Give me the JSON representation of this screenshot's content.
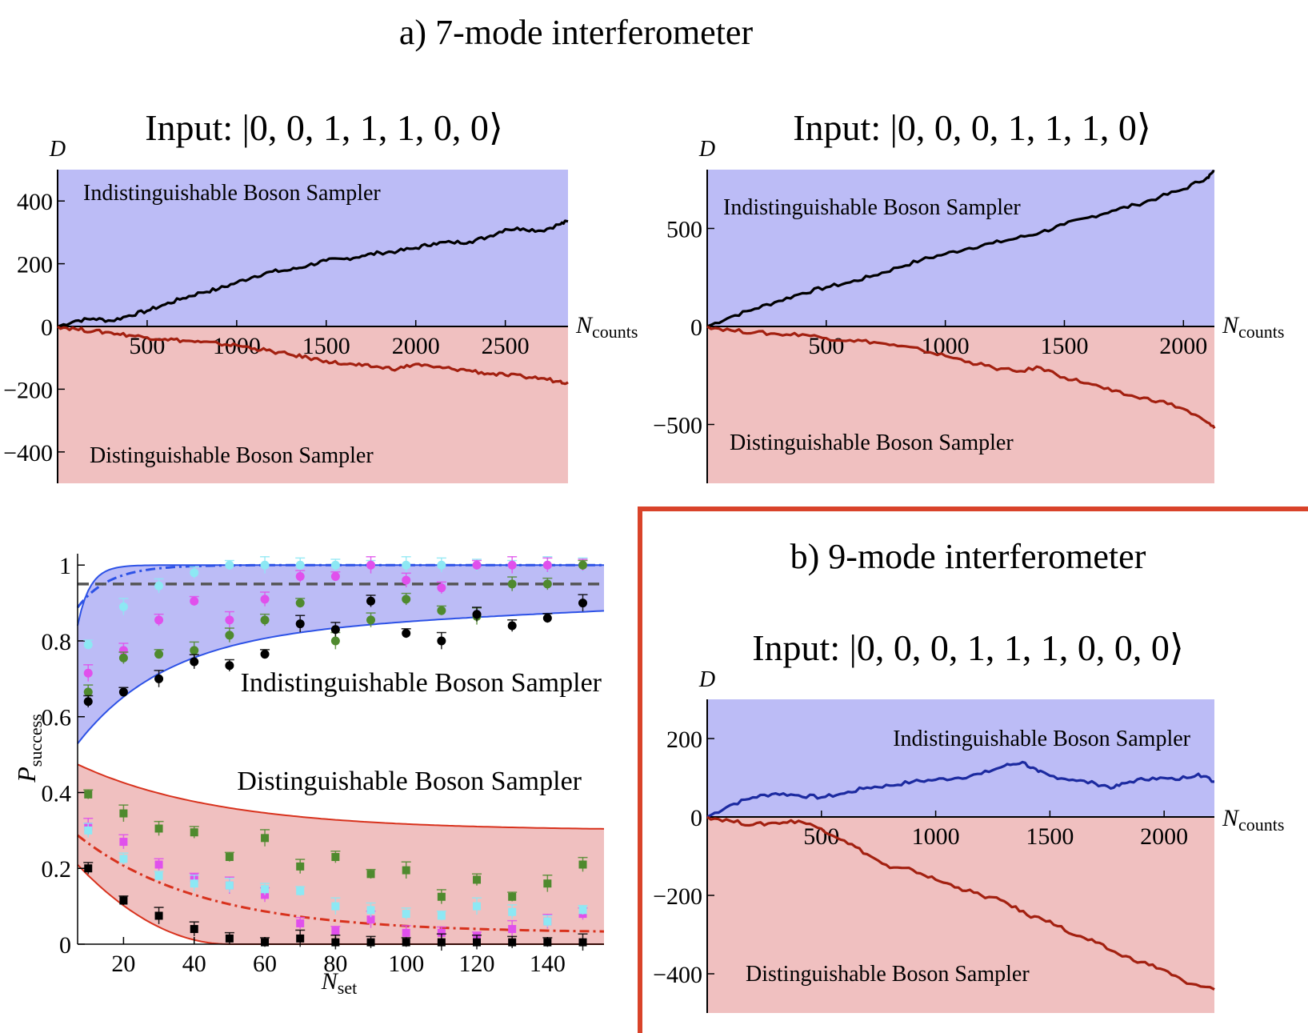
{
  "colors": {
    "indist_fill": "#bcbcf6",
    "dist_fill": "#f0c0c0",
    "dark_blue": "#1c2aa0",
    "dark_red": "#a32010",
    "bright_blue": "#2d52e6",
    "bright_red": "#d8321d",
    "frame_red": "#d9432a",
    "magenta": "#e050ec",
    "cyan": "#8de8f4",
    "green": "#4f8a2e",
    "black": "#000000",
    "gray": "#555555"
  },
  "figure": {
    "title_a": "a) 7-mode interferometer",
    "title_b": "b)  9-mode interferometer"
  },
  "chart_data": [
    {
      "id": "a-left",
      "type": "line",
      "input_prefix": "Input: ",
      "input_state": "|0, 0, 1, 1, 1, 0, 0⟩",
      "ylabel": "D",
      "xlabel_main": "N",
      "xlabel_sub": "counts",
      "xlim": [
        0,
        2850
      ],
      "ylim": [
        -500,
        500
      ],
      "xticks": [
        500,
        1000,
        1500,
        2000,
        2500
      ],
      "yticks": [
        -400,
        -200,
        0,
        200,
        400
      ],
      "ytick_labels": [
        "−400",
        "−200",
        "0",
        "200",
        "400"
      ],
      "region_top_label": "Indistinguishable Boson Sampler",
      "region_bottom_label": "Distinguishable Boson Sampler",
      "series": [
        {
          "name": "Indistinguishable",
          "color": "#000000",
          "x": [
            0,
            100,
            200,
            300,
            400,
            500,
            600,
            700,
            800,
            900,
            1000,
            1100,
            1200,
            1300,
            1400,
            1500,
            1600,
            1700,
            1800,
            1900,
            2000,
            2100,
            2200,
            2300,
            2400,
            2500,
            2600,
            2700,
            2800,
            2850
          ],
          "y": [
            0,
            18,
            25,
            18,
            35,
            50,
            70,
            90,
            108,
            120,
            140,
            160,
            175,
            180,
            195,
            210,
            215,
            225,
            235,
            240,
            250,
            265,
            268,
            270,
            285,
            310,
            312,
            305,
            325,
            335
          ]
        },
        {
          "name": "Distinguishable",
          "color": "#a32010",
          "x": [
            0,
            100,
            200,
            300,
            400,
            500,
            600,
            700,
            800,
            900,
            1000,
            1100,
            1200,
            1300,
            1400,
            1500,
            1600,
            1700,
            1800,
            1900,
            2000,
            2100,
            2200,
            2300,
            2400,
            2500,
            2600,
            2700,
            2800,
            2850
          ],
          "y": [
            0,
            -8,
            -15,
            -20,
            -28,
            -35,
            -40,
            -45,
            -50,
            -55,
            -60,
            -70,
            -80,
            -90,
            -100,
            -110,
            -120,
            -125,
            -130,
            -135,
            -120,
            -130,
            -135,
            -140,
            -150,
            -155,
            -160,
            -165,
            -175,
            -178
          ]
        }
      ]
    },
    {
      "id": "a-right",
      "type": "line",
      "input_prefix": "Input: ",
      "input_state": "|0, 0, 0, 1, 1, 1, 0⟩",
      "ylabel": "D",
      "xlabel_main": "N",
      "xlabel_sub": "counts",
      "xlim": [
        0,
        2130
      ],
      "ylim": [
        -800,
        800
      ],
      "xticks": [
        500,
        1000,
        1500,
        2000
      ],
      "yticks": [
        -500,
        0,
        500
      ],
      "ytick_labels": [
        "−500",
        "0",
        "500"
      ],
      "region_top_label": "Indistinguishable Boson Sampler",
      "region_bottom_label": "Distinguishable Boson Sampler",
      "series": [
        {
          "name": "Indistinguishable",
          "color": "#000000",
          "x": [
            0,
            100,
            200,
            300,
            400,
            500,
            600,
            700,
            800,
            900,
            1000,
            1100,
            1200,
            1300,
            1400,
            1500,
            1600,
            1700,
            1800,
            1900,
            2000,
            2100,
            2130
          ],
          "y": [
            0,
            50,
            90,
            130,
            170,
            200,
            225,
            260,
            300,
            340,
            370,
            400,
            425,
            450,
            480,
            520,
            555,
            590,
            620,
            660,
            700,
            760,
            790
          ]
        },
        {
          "name": "Distinguishable",
          "color": "#a32010",
          "x": [
            0,
            100,
            200,
            300,
            400,
            500,
            600,
            700,
            800,
            900,
            1000,
            1100,
            1200,
            1300,
            1400,
            1500,
            1600,
            1700,
            1800,
            1900,
            2000,
            2100,
            2130
          ],
          "y": [
            0,
            -20,
            -30,
            -40,
            -40,
            -60,
            -70,
            -80,
            -100,
            -120,
            -150,
            -180,
            -210,
            -230,
            -210,
            -260,
            -290,
            -330,
            -360,
            -380,
            -420,
            -490,
            -520
          ]
        }
      ]
    },
    {
      "id": "b",
      "type": "line",
      "input_prefix": "Input: ",
      "input_state": "|0, 0, 0, 1, 1, 1, 0, 0, 0⟩",
      "ylabel": "D",
      "xlabel_main": "N",
      "xlabel_sub": "counts",
      "xlim": [
        0,
        2220
      ],
      "ylim": [
        -500,
        300
      ],
      "xticks": [
        500,
        1000,
        1500,
        2000
      ],
      "yticks": [
        -400,
        -200,
        0,
        200
      ],
      "ytick_labels": [
        "−400",
        "−200",
        "0",
        "200"
      ],
      "region_top_label": "Indistinguishable Boson Sampler",
      "region_bottom_label": "Distinguishable Boson Sampler",
      "series": [
        {
          "name": "Indistinguishable",
          "color": "#1c2aa0",
          "x": [
            0,
            100,
            200,
            300,
            400,
            500,
            600,
            700,
            800,
            900,
            1000,
            1100,
            1200,
            1300,
            1380,
            1450,
            1500,
            1600,
            1700,
            1780,
            1850,
            1950,
            2050,
            2150,
            2220
          ],
          "y": [
            0,
            30,
            50,
            60,
            55,
            50,
            60,
            75,
            80,
            90,
            95,
            100,
            110,
            130,
            140,
            115,
            105,
            95,
            85,
            75,
            90,
            100,
            95,
            110,
            90
          ]
        },
        {
          "name": "Distinguishable",
          "color": "#a32010",
          "x": [
            0,
            100,
            200,
            300,
            400,
            500,
            600,
            700,
            800,
            900,
            1000,
            1100,
            1200,
            1300,
            1400,
            1500,
            1600,
            1700,
            1800,
            1900,
            2000,
            2100,
            2220
          ],
          "y": [
            0,
            -10,
            -20,
            -15,
            -10,
            -30,
            -60,
            -95,
            -130,
            -135,
            -160,
            -180,
            -200,
            -215,
            -250,
            -265,
            -300,
            -320,
            -350,
            -370,
            -390,
            -425,
            -440
          ]
        }
      ]
    },
    {
      "id": "p-success",
      "type": "scatter",
      "xlabel_main": "N",
      "xlabel_sub": "set",
      "ylabel_main": "P",
      "ylabel_sub": "success",
      "xlim": [
        7,
        156
      ],
      "ylim": [
        0,
        1.03
      ],
      "xticks": [
        20,
        40,
        60,
        80,
        100,
        120,
        140
      ],
      "yticks": [
        0,
        0.2,
        0.4,
        0.6,
        0.8,
        1
      ],
      "ytick_labels": [
        "0",
        "0.2",
        "0.4",
        "0.6",
        "0.8",
        "1"
      ],
      "region_top_label": "Indistinguishable Boson Sampler",
      "region_bottom_label": "Distinguishable Boson Sampler",
      "threshold": 0.95,
      "x": [
        10,
        20,
        30,
        40,
        50,
        60,
        70,
        80,
        90,
        100,
        110,
        120,
        130,
        140,
        150
      ],
      "series": [
        {
          "name": "cyan-indist",
          "color": "#8de8f4",
          "values": [
            0.79,
            0.89,
            0.945,
            0.98,
            1.0,
            1.0,
            1.0,
            1.0,
            1.0,
            1.0,
            1.0,
            1.0,
            1.0,
            1.0,
            1.0
          ]
        },
        {
          "name": "magenta-indist",
          "color": "#e050ec",
          "values": [
            0.715,
            0.775,
            0.855,
            0.905,
            0.855,
            0.91,
            0.97,
            0.97,
            1.0,
            0.96,
            0.94,
            1.0,
            1.0,
            1.0,
            1.0
          ]
        },
        {
          "name": "green-indist",
          "color": "#4f8a2e",
          "values": [
            0.665,
            0.755,
            0.765,
            0.775,
            0.815,
            0.855,
            0.9,
            0.8,
            0.855,
            0.91,
            0.88,
            0.865,
            0.95,
            0.95,
            1.0
          ]
        },
        {
          "name": "black-indist",
          "color": "#000000",
          "values": [
            0.64,
            0.665,
            0.7,
            0.745,
            0.735,
            0.765,
            0.845,
            0.83,
            0.905,
            0.82,
            0.8,
            0.87,
            0.84,
            0.86,
            0.9
          ]
        },
        {
          "name": "green-dist",
          "color": "#4f8a2e",
          "values": [
            0.395,
            0.345,
            0.305,
            0.295,
            0.23,
            0.28,
            0.205,
            0.23,
            0.185,
            0.195,
            0.125,
            0.17,
            0.125,
            0.16,
            0.21
          ]
        },
        {
          "name": "magenta-dist",
          "color": "#e050ec",
          "values": [
            0.31,
            0.27,
            0.21,
            0.175,
            0.155,
            0.13,
            0.055,
            0.035,
            0.065,
            0.03,
            0.03,
            0.02,
            0.04,
            0.06,
            0.08
          ]
        },
        {
          "name": "cyan-dist",
          "color": "#8de8f4",
          "values": [
            0.3,
            0.225,
            0.18,
            0.16,
            0.155,
            0.145,
            0.14,
            0.1,
            0.09,
            0.08,
            0.075,
            0.1,
            0.085,
            0.06,
            0.09
          ]
        },
        {
          "name": "black-dist",
          "color": "#000000",
          "values": [
            0.2,
            0.115,
            0.075,
            0.04,
            0.015,
            0.005,
            0.015,
            0.005,
            0.005,
            0.005,
            0.005,
            0.005,
            0.005,
            0.005,
            0.005
          ]
        }
      ]
    }
  ]
}
